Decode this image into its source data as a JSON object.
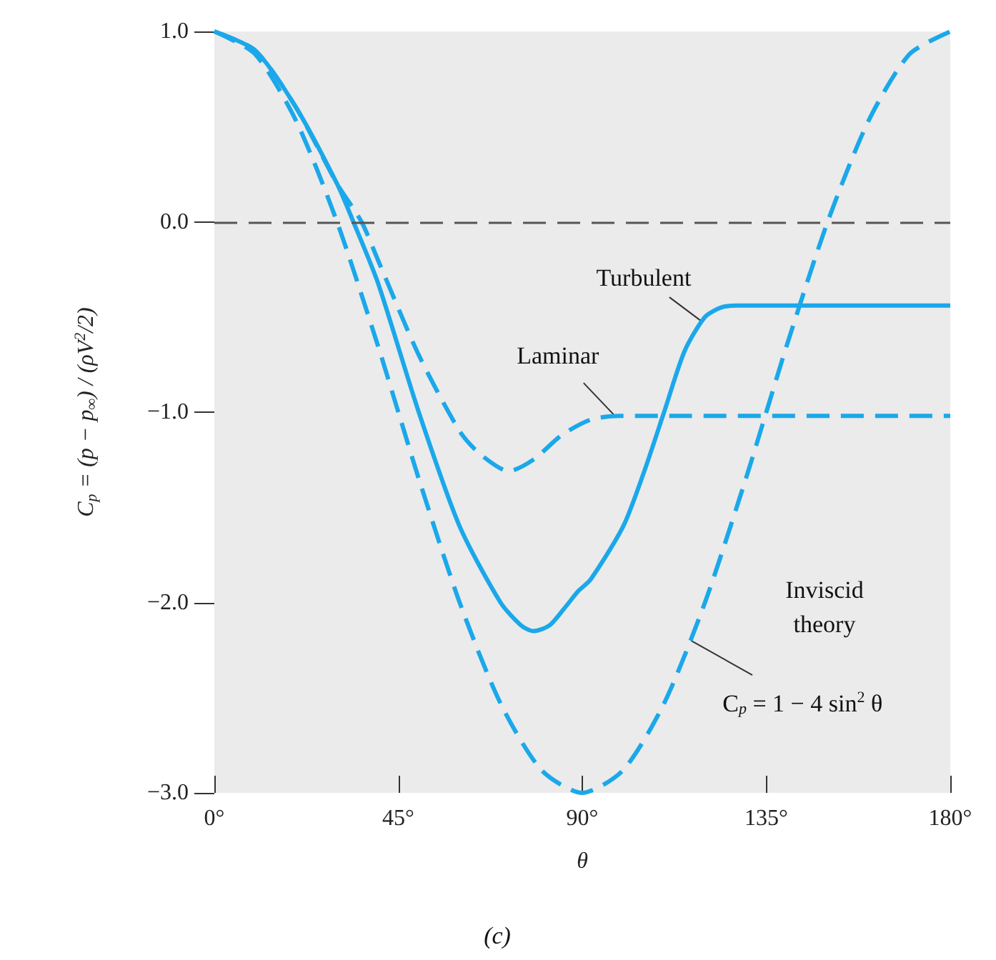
{
  "chart_data": {
    "type": "line",
    "xlabel": "θ",
    "ylabel": "C$_{p}$ = (p − p$_{∞}$) / (ρV$^{2}$/2)",
    "xlim": [
      0,
      180
    ],
    "xticks": [
      {
        "value": 0,
        "label": "0°"
      },
      {
        "value": 45,
        "label": "45°"
      },
      {
        "value": 90,
        "label": "90°"
      },
      {
        "value": 135,
        "label": "135°"
      },
      {
        "value": 180,
        "label": "180°"
      }
    ],
    "ylim": [
      -3,
      1
    ],
    "yticks": [
      {
        "value": -3,
        "label": "−3.0"
      },
      {
        "value": -2,
        "label": "−2.0"
      },
      {
        "value": -1,
        "label": "−1.0"
      },
      {
        "value": 0,
        "label": "0.0"
      },
      {
        "value": 1,
        "label": "1.0"
      }
    ],
    "marker": "none",
    "grid": false,
    "series": [
      {
        "color": "#1ba8ea",
        "line_style": "solid",
        "x": [
          0,
          10,
          20,
          30,
          34,
          40,
          50,
          60,
          70,
          75,
          78,
          82,
          86,
          89,
          92,
          100,
          105,
          110,
          115,
          120,
          124,
          128,
          180
        ],
        "values": [
          1,
          0.9,
          0.6,
          0.2,
          0,
          -0.32,
          -1.0,
          -1.6,
          -2.0,
          -2.12,
          -2.15,
          -2.12,
          -2.02,
          -1.94,
          -1.88,
          -1.6,
          -1.32,
          -1.0,
          -0.68,
          -0.5,
          -0.45,
          -0.44,
          -0.44
        ]
      },
      {
        "color": "#1ba8ea",
        "line_style": "dashed",
        "x": [
          0,
          10,
          20,
          30,
          36,
          40,
          50,
          60,
          65,
          72,
          78,
          85,
          92,
          99,
          180
        ],
        "values": [
          1,
          0.9,
          0.6,
          0.2,
          0,
          -0.2,
          -0.7,
          -1.1,
          -1.22,
          -1.31,
          -1.25,
          -1.12,
          -1.04,
          -1.02,
          -1.02
        ]
      },
      {
        "color": "#1ba8ea",
        "line_style": "dashed",
        "x": [
          0,
          10,
          20,
          30,
          40,
          45,
          50,
          60,
          70,
          80,
          90,
          100,
          110,
          120,
          130,
          135,
          140,
          150,
          160,
          170,
          180
        ],
        "values": [
          1,
          0.88,
          0.53,
          0,
          -0.65,
          -1,
          -1.35,
          -2,
          -2.53,
          -2.88,
          -3,
          -2.88,
          -2.53,
          -2,
          -1.35,
          -1,
          -0.65,
          0,
          0.53,
          0.88,
          1
        ]
      }
    ],
    "ref_lines": [
      {
        "axis": "y",
        "value": 0,
        "color": "#555555",
        "line_style": "dashed"
      }
    ],
    "annotations": [
      {
        "text": "Turbulent",
        "x": 119,
        "y": -0.52
      },
      {
        "text": "Laminar",
        "x": 98,
        "y": -1.02
      },
      {
        "text": "C$_{p}$ = 1 − 4 sin$^{2}$ θ",
        "x": 116.6,
        "y": -2.2
      },
      "Inviscid\ntheory",
      "(c)"
    ]
  }
}
